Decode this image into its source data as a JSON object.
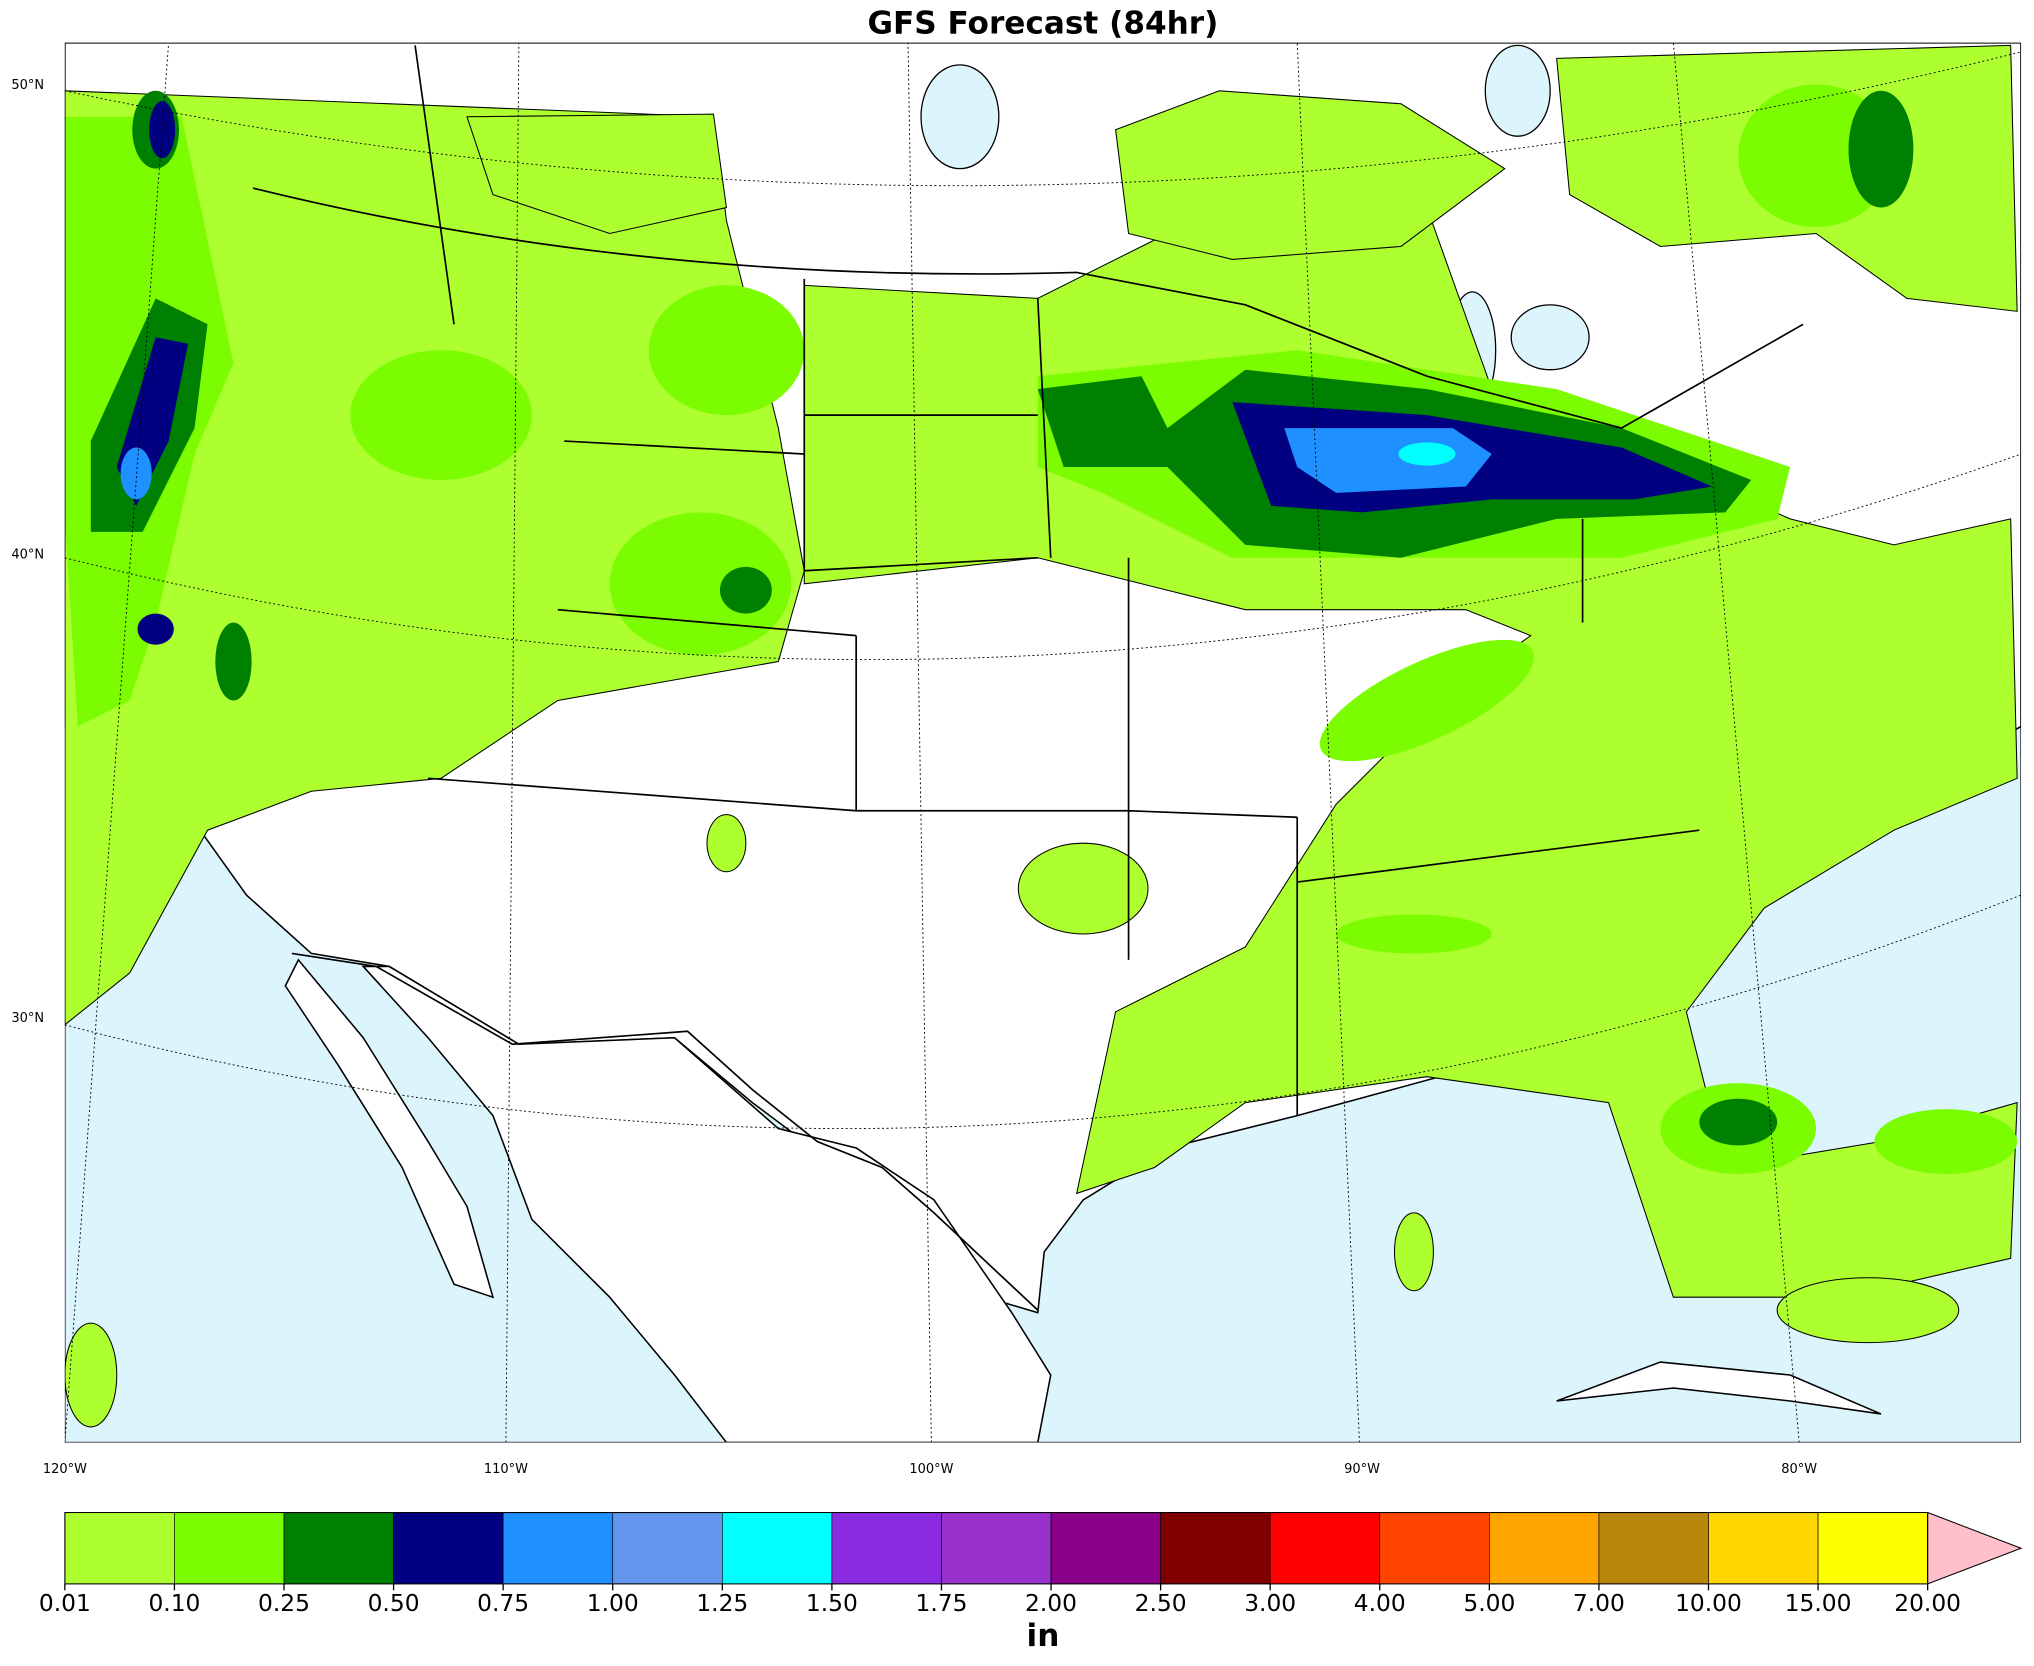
{
  "title": "GFS Forecast (84hr)",
  "lat_labels": [
    "50°N",
    "40°N",
    "30°N"
  ],
  "lon_labels": [
    "120°W",
    "110°W",
    "100°W",
    "90°W",
    "80°W"
  ],
  "colorbar": {
    "label": "in",
    "ticks": [
      {
        "value": 0.01,
        "label": "0.01"
      },
      {
        "value": 0.1,
        "label": "0.10"
      },
      {
        "value": 0.25,
        "label": "0.25"
      },
      {
        "value": 0.5,
        "label": "0.50"
      },
      {
        "value": 0.75,
        "label": "0.75"
      },
      {
        "value": 1,
        "label": "1.00"
      },
      {
        "value": 1.25,
        "label": "1.25"
      },
      {
        "value": 1.5,
        "label": "1.50"
      },
      {
        "value": 1.75,
        "label": "1.75"
      },
      {
        "value": 2,
        "label": "2.00"
      },
      {
        "value": 2.5,
        "label": "2.50"
      },
      {
        "value": 3,
        "label": "3.00"
      },
      {
        "value": 4,
        "label": "4.00"
      },
      {
        "value": 5,
        "label": "5.00"
      },
      {
        "value": 7,
        "label": "7.00"
      },
      {
        "value": 10,
        "label": "10.00"
      },
      {
        "value": 15,
        "label": "15.00"
      },
      {
        "value": 20,
        "label": "20.00"
      }
    ],
    "colors": [
      "#adff2f",
      "#7cfc00",
      "#008000",
      "#000080",
      "#1e90ff",
      "#6495ed",
      "#00ffff",
      "#8a2be2",
      "#9932cc",
      "#8b008b",
      "#800000",
      "#ff0000",
      "#ff4500",
      "#ffa500",
      "#b8860b",
      "#ffd700",
      "#ffff00"
    ],
    "extend_color": "#ffc0cb"
  }
}
